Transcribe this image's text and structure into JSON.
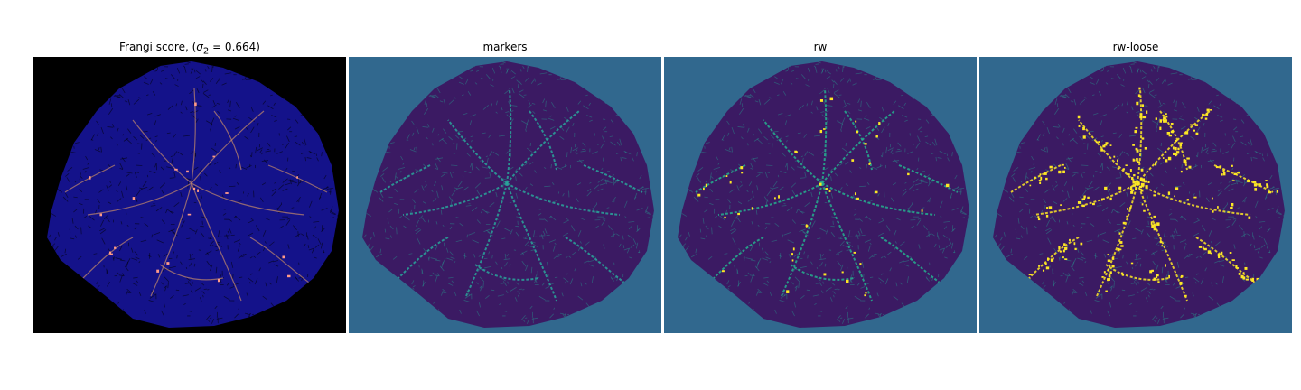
{
  "panels": [
    {
      "title": "Frangi score, (",
      "title_math": "σ",
      "title_sub": "2",
      "title_tail": " = 0.664)",
      "background": "#000000",
      "blob": "#14128a",
      "texture": "#000000",
      "vessel": "#c58a6a",
      "highlight": "#ff9a88"
    },
    {
      "title": "markers",
      "background": "#31688e",
      "blob": "#3b1a63",
      "texture": "#2a8a8a",
      "vessel": "#2aa59a",
      "highlight": "#2aa59a"
    },
    {
      "title": "rw",
      "background": "#31688e",
      "blob": "#3b1a63",
      "texture": "#2a8a8a",
      "vessel": "#26b08e",
      "highlight": "#fde725"
    },
    {
      "title": "rw-loose",
      "background": "#31688e",
      "blob": "#3b1a63",
      "texture": "#2a8a8a",
      "vessel": "#fde725",
      "highlight": "#fde725"
    }
  ]
}
